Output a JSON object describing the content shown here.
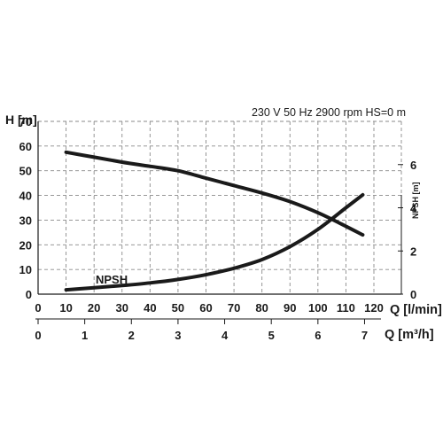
{
  "chart_data": {
    "type": "line",
    "conditions": "230 V   50 Hz   2900 rpm   HS=0 m",
    "y_left": {
      "label": "H [m]",
      "ticks": [
        0,
        10,
        20,
        30,
        40,
        50,
        60,
        70
      ],
      "range": [
        0,
        70
      ]
    },
    "y_right": {
      "label": "NPSH [m]",
      "ticks": [
        0,
        2,
        4,
        6
      ],
      "range": [
        0,
        8
      ]
    },
    "x_primary": {
      "label": "Q [l/min]",
      "ticks": [
        0,
        10,
        20,
        30,
        40,
        50,
        60,
        70,
        80,
        90,
        100,
        110,
        120
      ],
      "range": [
        0,
        128
      ]
    },
    "x_secondary": {
      "label": "Q [m³/h]",
      "ticks": [
        0,
        1,
        2,
        3,
        4,
        5,
        6,
        7
      ],
      "range": [
        0,
        7.68
      ]
    },
    "grid": true,
    "series": [
      {
        "name": "",
        "axis": "left",
        "x": [
          10,
          20,
          30,
          40,
          50,
          60,
          70,
          80,
          90,
          100,
          110,
          116
        ],
        "y": [
          57.5,
          55.5,
          53.5,
          51.8,
          50.0,
          47.0,
          44.0,
          41.0,
          37.5,
          33.0,
          27.5,
          24.0
        ]
      },
      {
        "name": "NPSH",
        "axis": "right",
        "x": [
          10,
          20,
          30,
          40,
          50,
          60,
          70,
          80,
          90,
          100,
          110,
          116
        ],
        "y": [
          0.2,
          0.3,
          0.4,
          0.52,
          0.68,
          0.9,
          1.2,
          1.6,
          2.2,
          3.0,
          4.0,
          4.6
        ]
      }
    ]
  }
}
